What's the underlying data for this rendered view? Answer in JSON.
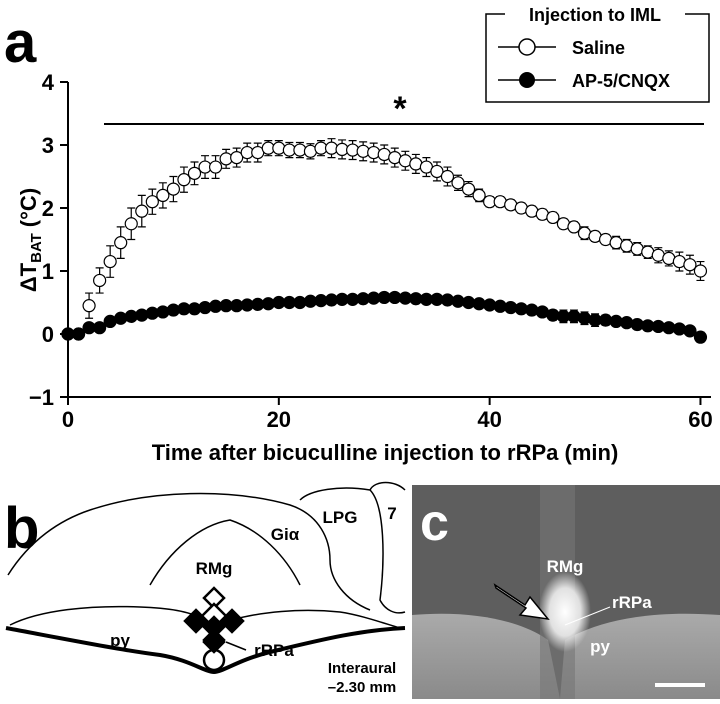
{
  "panel_labels": [
    "a",
    "b",
    "c"
  ],
  "chart_data": {
    "type": "scatter-errorbar",
    "ylabel": "ΔT",
    "ylabel_sub": "BAT",
    "ylabel_unit": "(°C)",
    "xlabel": "Time after bicuculline injection to rRPa (min)",
    "significance": "*",
    "legend_title": "Injection to IML",
    "legend": "upper-right",
    "xlim": [
      0,
      61
    ],
    "ylim": [
      -1,
      4
    ],
    "xticks": [
      0,
      20,
      40,
      60
    ],
    "yticks": [
      {
        "value": -1,
        "label": "−1"
      },
      0,
      1,
      2,
      3,
      4
    ],
    "x": [
      0,
      1,
      2,
      3,
      4,
      5,
      6,
      7,
      8,
      9,
      10,
      11,
      12,
      13,
      14,
      15,
      16,
      17,
      18,
      19,
      20,
      21,
      22,
      23,
      24,
      25,
      26,
      27,
      28,
      29,
      30,
      31,
      32,
      33,
      34,
      35,
      36,
      37,
      38,
      39,
      40,
      41,
      42,
      43,
      44,
      45,
      46,
      47,
      48,
      49,
      50,
      51,
      52,
      53,
      54,
      55,
      56,
      57,
      58,
      59,
      60
    ],
    "series": [
      {
        "name": "Saline",
        "color": "#ffffff",
        "marker": "open",
        "values": [
          0,
          0,
          0.45,
          0.85,
          1.15,
          1.45,
          1.75,
          1.95,
          2.1,
          2.2,
          2.3,
          2.45,
          2.55,
          2.65,
          2.65,
          2.78,
          2.8,
          2.88,
          2.88,
          2.95,
          2.95,
          2.92,
          2.92,
          2.9,
          2.95,
          2.95,
          2.93,
          2.92,
          2.9,
          2.88,
          2.85,
          2.8,
          2.75,
          2.7,
          2.65,
          2.58,
          2.5,
          2.4,
          2.3,
          2.2,
          2.1,
          2.1,
          2.05,
          2.0,
          1.95,
          1.9,
          1.85,
          1.75,
          1.7,
          1.6,
          1.55,
          1.5,
          1.45,
          1.4,
          1.35,
          1.3,
          1.25,
          1.2,
          1.15,
          1.1,
          1.0
        ],
        "errors": [
          0,
          0,
          0.2,
          0.2,
          0.25,
          0.25,
          0.25,
          0.25,
          0.2,
          0.2,
          0.2,
          0.2,
          0.18,
          0.18,
          0.18,
          0.15,
          0.15,
          0.15,
          0.15,
          0.12,
          0.12,
          0.12,
          0.12,
          0.12,
          0.12,
          0.15,
          0.15,
          0.15,
          0.15,
          0.15,
          0.15,
          0.15,
          0.15,
          0.15,
          0.15,
          0.15,
          0.15,
          0.12,
          0.12,
          0.1,
          0.08,
          0.08,
          0.08,
          0.08,
          0.08,
          0.08,
          0.08,
          0.08,
          0.08,
          0.1,
          0.08,
          0.08,
          0.1,
          0.1,
          0.1,
          0.1,
          0.12,
          0.12,
          0.15,
          0.15,
          0.15
        ]
      },
      {
        "name": "AP-5/CNQX",
        "color": "#000000",
        "marker": "filled",
        "values": [
          0,
          0,
          0.1,
          0.1,
          0.2,
          0.25,
          0.28,
          0.3,
          0.33,
          0.35,
          0.38,
          0.4,
          0.4,
          0.42,
          0.44,
          0.45,
          0.45,
          0.46,
          0.47,
          0.48,
          0.5,
          0.5,
          0.5,
          0.52,
          0.53,
          0.54,
          0.55,
          0.55,
          0.56,
          0.57,
          0.58,
          0.58,
          0.57,
          0.56,
          0.55,
          0.55,
          0.54,
          0.52,
          0.5,
          0.48,
          0.46,
          0.44,
          0.42,
          0.4,
          0.38,
          0.35,
          0.3,
          0.28,
          0.28,
          0.25,
          0.22,
          0.22,
          0.2,
          0.18,
          0.15,
          0.13,
          0.12,
          0.1,
          0.08,
          0.05,
          -0.05
        ],
        "errors": [
          0,
          0,
          0.05,
          0.05,
          0.05,
          0.05,
          0.05,
          0.05,
          0.05,
          0.05,
          0.05,
          0.05,
          0.05,
          0.05,
          0.05,
          0.05,
          0.05,
          0.05,
          0.05,
          0.05,
          0.05,
          0.05,
          0.05,
          0.05,
          0.05,
          0.05,
          0.05,
          0.05,
          0.05,
          0.05,
          0.05,
          0.05,
          0.05,
          0.05,
          0.05,
          0.05,
          0.05,
          0.05,
          0.05,
          0.05,
          0.05,
          0.05,
          0.05,
          0.05,
          0.05,
          0.05,
          0.08,
          0.1,
          0.1,
          0.1,
          0.1,
          0.08,
          0.05,
          0.05,
          0.05,
          0.05,
          0.05,
          0.05,
          0.05,
          0.05,
          0.08
        ]
      }
    ]
  },
  "diagram": {
    "labels": [
      "RMg",
      "Giα",
      "LPG",
      "7",
      "py",
      "rRPa"
    ],
    "level_title": "Interaural",
    "level": "–2.30 mm"
  },
  "photo": {
    "labels": [
      "RMg",
      "rRPa",
      "py"
    ]
  }
}
